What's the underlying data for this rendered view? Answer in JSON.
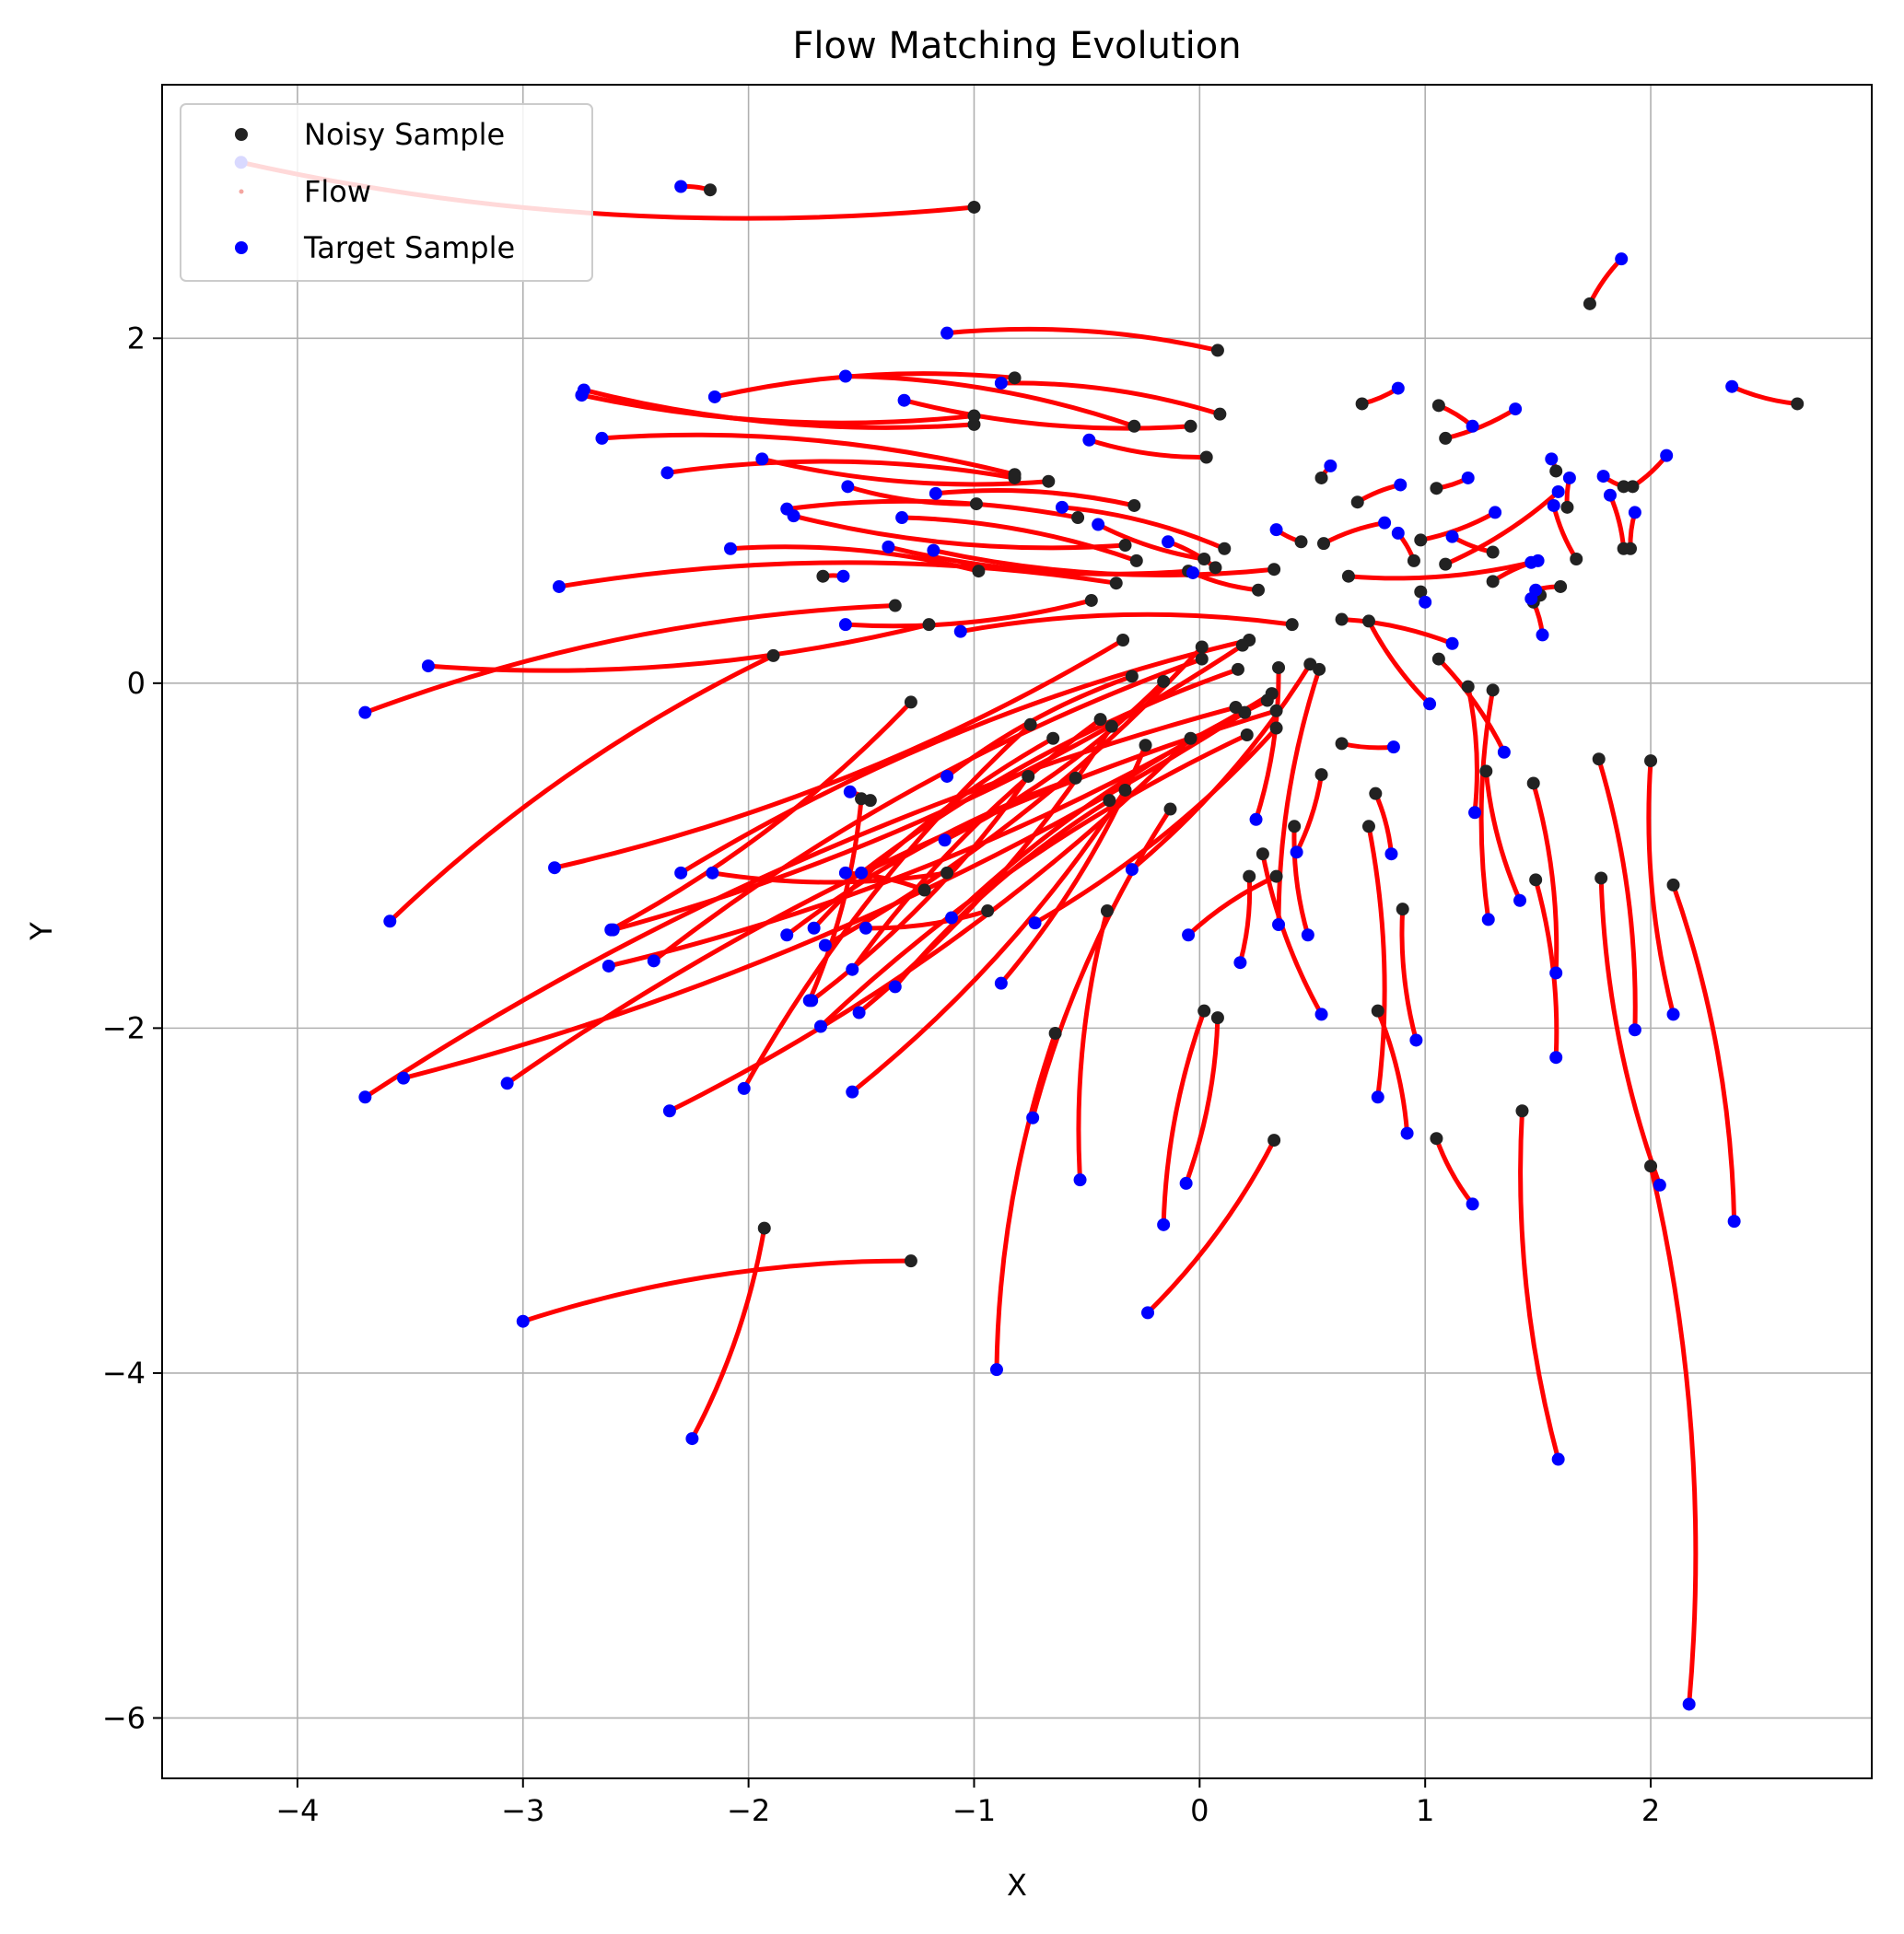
{
  "chart_data": {
    "type": "scatter",
    "title": "Flow Matching Evolution",
    "xlabel": "X",
    "ylabel": "Y",
    "xlim": [
      -4.6,
      2.98
    ],
    "ylim": [
      -6.35,
      3.47
    ],
    "xticks": [
      -4,
      -3,
      -2,
      -1,
      0,
      1,
      2
    ],
    "yticks": [
      -6,
      -4,
      -2,
      0,
      2
    ],
    "xtick_labels": [
      "−4",
      "−3",
      "−2",
      "−1",
      "0",
      "1",
      "2"
    ],
    "ytick_labels": [
      "−6",
      "−4",
      "−2",
      "0",
      "2"
    ],
    "grid": true,
    "legend_position": "top-left",
    "legend": [
      {
        "label": "Noisy Sample",
        "marker": "circle",
        "color": "#222222"
      },
      {
        "label": "Flow",
        "marker": "dot",
        "color": "#f4a6a0"
      },
      {
        "label": "Target Sample",
        "marker": "circle",
        "color": "#0000ff"
      }
    ],
    "colors": {
      "noisy": "#222222",
      "flow": "#ff0000",
      "target": "#0000ff",
      "grid": "#b0b0b0"
    },
    "flows": [
      {
        "noisy": [
          -1.0,
          2.76
        ],
        "target": [
          -4.25,
          3.02
        ]
      },
      {
        "noisy": [
          -2.17,
          2.86
        ],
        "target": [
          -2.3,
          2.88
        ]
      },
      {
        "noisy": [
          1.73,
          2.2
        ],
        "target": [
          1.87,
          2.46
        ]
      },
      {
        "noisy": [
          0.08,
          1.93
        ],
        "target": [
          -1.12,
          2.03
        ]
      },
      {
        "noisy": [
          2.65,
          1.62
        ],
        "target": [
          2.36,
          1.72
        ]
      },
      {
        "noisy": [
          -0.82,
          1.77
        ],
        "target": [
          -2.15,
          1.66
        ]
      },
      {
        "noisy": [
          -1.0,
          1.5
        ],
        "target": [
          -2.73,
          1.7
        ]
      },
      {
        "noisy": [
          0.09,
          1.56
        ],
        "target": [
          -0.88,
          1.74
        ]
      },
      {
        "noisy": [
          -1.0,
          1.55
        ],
        "target": [
          -2.74,
          1.67
        ]
      },
      {
        "noisy": [
          -0.29,
          1.49
        ],
        "target": [
          -1.57,
          1.78
        ]
      },
      {
        "noisy": [
          -0.04,
          1.49
        ],
        "target": [
          -1.31,
          1.64
        ]
      },
      {
        "noisy": [
          0.72,
          1.62
        ],
        "target": [
          0.88,
          1.71
        ]
      },
      {
        "noisy": [
          1.06,
          1.61
        ],
        "target": [
          1.21,
          1.49
        ]
      },
      {
        "noisy": [
          1.09,
          1.42
        ],
        "target": [
          1.4,
          1.59
        ]
      },
      {
        "noisy": [
          0.03,
          1.31
        ],
        "target": [
          -0.49,
          1.41
        ]
      },
      {
        "noisy": [
          -0.82,
          1.21
        ],
        "target": [
          -2.65,
          1.42
        ]
      },
      {
        "noisy": [
          -0.67,
          1.17
        ],
        "target": [
          -1.94,
          1.3
        ]
      },
      {
        "noisy": [
          -0.82,
          1.19
        ],
        "target": [
          -2.36,
          1.22
        ]
      },
      {
        "noisy": [
          0.54,
          1.19
        ],
        "target": [
          0.58,
          1.26
        ]
      },
      {
        "noisy": [
          1.05,
          1.13
        ],
        "target": [
          1.19,
          1.19
        ]
      },
      {
        "noisy": [
          -0.99,
          1.04
        ],
        "target": [
          -1.56,
          1.14
        ]
      },
      {
        "noisy": [
          -0.29,
          1.03
        ],
        "target": [
          -1.17,
          1.1
        ]
      },
      {
        "noisy": [
          0.7,
          1.05
        ],
        "target": [
          0.89,
          1.15
        ]
      },
      {
        "noisy": [
          1.58,
          1.23
        ],
        "target": [
          1.56,
          1.3
        ]
      },
      {
        "noisy": [
          1.63,
          1.02
        ],
        "target": [
          1.64,
          1.19
        ]
      },
      {
        "noisy": [
          1.92,
          1.14
        ],
        "target": [
          2.07,
          1.32
        ]
      },
      {
        "noisy": [
          1.88,
          1.14
        ],
        "target": [
          1.79,
          1.2
        ]
      },
      {
        "noisy": [
          -0.54,
          0.96
        ],
        "target": [
          -1.83,
          1.01
        ]
      },
      {
        "noisy": [
          0.55,
          0.81
        ],
        "target": [
          0.82,
          0.93
        ]
      },
      {
        "noisy": [
          0.98,
          0.83
        ],
        "target": [
          1.31,
          0.99
        ]
      },
      {
        "noisy": [
          -0.33,
          0.8
        ],
        "target": [
          -1.8,
          0.97
        ]
      },
      {
        "noisy": [
          0.11,
          0.78
        ],
        "target": [
          -0.61,
          1.02
        ]
      },
      {
        "noisy": [
          0.45,
          0.82
        ],
        "target": [
          0.34,
          0.89
        ]
      },
      {
        "noisy": [
          0.95,
          0.71
        ],
        "target": [
          0.88,
          0.87
        ]
      },
      {
        "noisy": [
          1.3,
          0.76
        ],
        "target": [
          1.12,
          0.85
        ]
      },
      {
        "noisy": [
          1.88,
          0.78
        ],
        "target": [
          1.82,
          1.09
        ]
      },
      {
        "noisy": [
          1.91,
          0.78
        ],
        "target": [
          1.93,
          0.99
        ]
      },
      {
        "noisy": [
          -0.28,
          0.71
        ],
        "target": [
          -1.32,
          0.96
        ]
      },
      {
        "noisy": [
          0.02,
          0.72
        ],
        "target": [
          -0.45,
          0.92
        ]
      },
      {
        "noisy": [
          1.09,
          0.69
        ],
        "target": [
          1.59,
          1.11
        ]
      },
      {
        "noisy": [
          1.67,
          0.72
        ],
        "target": [
          1.57,
          1.03
        ]
      },
      {
        "noisy": [
          -0.98,
          0.65
        ],
        "target": [
          -2.08,
          0.78
        ]
      },
      {
        "noisy": [
          -0.05,
          0.65
        ],
        "target": [
          -1.38,
          0.79
        ]
      },
      {
        "noisy": [
          0.07,
          0.67
        ],
        "target": [
          -0.14,
          0.82
        ]
      },
      {
        "noisy": [
          0.33,
          0.66
        ],
        "target": [
          -1.18,
          0.77
        ]
      },
      {
        "noisy": [
          0.66,
          0.62
        ],
        "target": [
          1.47,
          0.7
        ]
      },
      {
        "noisy": [
          -1.67,
          0.62
        ],
        "target": [
          -1.58,
          0.62
        ]
      },
      {
        "noisy": [
          -0.37,
          0.58
        ],
        "target": [
          -2.84,
          0.56
        ]
      },
      {
        "noisy": [
          1.3,
          0.59
        ],
        "target": [
          1.5,
          0.71
        ]
      },
      {
        "noisy": [
          1.6,
          0.56
        ],
        "target": [
          1.49,
          0.54
        ]
      },
      {
        "noisy": [
          0.26,
          0.54
        ],
        "target": [
          -0.03,
          0.64
        ]
      },
      {
        "noisy": [
          0.98,
          0.53
        ],
        "target": [
          1.0,
          0.47
        ]
      },
      {
        "noisy": [
          1.48,
          0.47
        ],
        "target": [
          1.52,
          0.28
        ]
      },
      {
        "noisy": [
          1.51,
          0.51
        ],
        "target": [
          1.47,
          0.49
        ]
      },
      {
        "noisy": [
          -0.48,
          0.48
        ],
        "target": [
          -1.57,
          0.34
        ]
      },
      {
        "noisy": [
          -1.35,
          0.45
        ],
        "target": [
          -3.7,
          -0.17
        ]
      },
      {
        "noisy": [
          0.63,
          0.37
        ],
        "target": [
          1.12,
          0.23
        ]
      },
      {
        "noisy": [
          0.75,
          0.36
        ],
        "target": [
          1.02,
          -0.12
        ]
      },
      {
        "noisy": [
          -1.2,
          0.34
        ],
        "target": [
          -3.42,
          0.1
        ]
      },
      {
        "noisy": [
          0.41,
          0.34
        ],
        "target": [
          -1.06,
          0.3
        ]
      },
      {
        "noisy": [
          -0.34,
          0.25
        ],
        "target": [
          -2.86,
          -1.07
        ]
      },
      {
        "noisy": [
          0.22,
          0.25
        ],
        "target": [
          -2.3,
          -1.1
        ]
      },
      {
        "noisy": [
          0.01,
          0.21
        ],
        "target": [
          -1.66,
          -1.52
        ]
      },
      {
        "noisy": [
          -1.89,
          0.16
        ],
        "target": [
          -3.59,
          -1.38
        ]
      },
      {
        "noisy": [
          0.19,
          0.22
        ],
        "target": [
          -2.6,
          -1.43
        ]
      },
      {
        "noisy": [
          0.01,
          0.14
        ],
        "target": [
          -2.42,
          -1.61
        ]
      },
      {
        "noisy": [
          0.49,
          0.11
        ],
        "target": [
          -0.3,
          -1.08
        ]
      },
      {
        "noisy": [
          0.53,
          0.08
        ],
        "target": [
          0.35,
          -1.4
        ]
      },
      {
        "noisy": [
          0.35,
          0.09
        ],
        "target": [
          0.25,
          -0.79
        ]
      },
      {
        "noisy": [
          -0.3,
          0.04
        ],
        "target": [
          -1.12,
          -0.54
        ]
      },
      {
        "noisy": [
          -0.16,
          0.01
        ],
        "target": [
          -1.13,
          -0.91
        ]
      },
      {
        "noisy": [
          0.17,
          0.08
        ],
        "target": [
          -1.5,
          -1.1
        ]
      },
      {
        "noisy": [
          1.06,
          0.14
        ],
        "target": [
          1.35,
          -0.4
        ]
      },
      {
        "noisy": [
          0.3,
          -0.1
        ],
        "target": [
          -1.1,
          -1.36
        ]
      },
      {
        "noisy": [
          0.32,
          -0.06
        ],
        "target": [
          -2.62,
          -1.64
        ]
      },
      {
        "noisy": [
          0.16,
          -0.14
        ],
        "target": [
          -3.7,
          -2.4
        ]
      },
      {
        "noisy": [
          0.2,
          -0.17
        ],
        "target": [
          -3.53,
          -2.29
        ]
      },
      {
        "noisy": [
          0.34,
          -0.16
        ],
        "target": [
          -3.07,
          -2.32
        ]
      },
      {
        "noisy": [
          0.34,
          -0.26
        ],
        "target": [
          -0.73,
          -1.39
        ]
      },
      {
        "noisy": [
          0.21,
          -0.3
        ],
        "target": [
          -1.68,
          -1.99
        ]
      },
      {
        "noisy": [
          1.19,
          -0.02
        ],
        "target": [
          1.22,
          -0.75
        ]
      },
      {
        "noisy": [
          1.3,
          -0.04
        ],
        "target": [
          1.28,
          -1.37
        ]
      },
      {
        "noisy": [
          -1.28,
          -0.11
        ],
        "target": [
          -2.61,
          -1.43
        ]
      },
      {
        "noisy": [
          -0.44,
          -0.21
        ],
        "target": [
          -1.54,
          -1.66
        ]
      },
      {
        "noisy": [
          -0.39,
          -0.25
        ],
        "target": [
          -1.51,
          -1.91
        ]
      },
      {
        "noisy": [
          -0.75,
          -0.24
        ],
        "target": [
          -2.02,
          -2.35
        ]
      },
      {
        "noisy": [
          -0.04,
          -0.32
        ],
        "target": [
          -2.35,
          -2.48
        ]
      },
      {
        "noisy": [
          -0.65,
          -0.32
        ],
        "target": [
          -1.71,
          -1.42
        ]
      },
      {
        "noisy": [
          -0.24,
          -0.36
        ],
        "target": [
          -0.88,
          -1.74
        ]
      },
      {
        "noisy": [
          0.63,
          -0.35
        ],
        "target": [
          0.86,
          -0.37
        ]
      },
      {
        "noisy": [
          -0.76,
          -0.54
        ],
        "target": [
          -1.72,
          -1.84
        ]
      },
      {
        "noisy": [
          -0.55,
          -0.55
        ],
        "target": [
          -1.83,
          -1.46
        ]
      },
      {
        "noisy": [
          0.54,
          -0.53
        ],
        "target": [
          0.43,
          -0.98
        ]
      },
      {
        "noisy": [
          -0.4,
          -0.68
        ],
        "target": [
          -1.35,
          -1.76
        ]
      },
      {
        "noisy": [
          -0.33,
          -0.62
        ],
        "target": [
          -1.54,
          -2.37
        ]
      },
      {
        "noisy": [
          1.27,
          -0.51
        ],
        "target": [
          1.42,
          -1.26
        ]
      },
      {
        "noisy": [
          1.77,
          -0.44
        ],
        "target": [
          1.93,
          -2.01
        ]
      },
      {
        "noisy": [
          2.0,
          -0.45
        ],
        "target": [
          2.1,
          -1.92
        ]
      },
      {
        "noisy": [
          1.48,
          -0.58
        ],
        "target": [
          1.58,
          -1.68
        ]
      },
      {
        "noisy": [
          -1.46,
          -0.68
        ],
        "target": [
          -1.55,
          -0.63
        ]
      },
      {
        "noisy": [
          -1.5,
          -0.67
        ],
        "target": [
          -1.73,
          -1.84
        ]
      },
      {
        "noisy": [
          -0.13,
          -0.73
        ],
        "target": [
          -0.74,
          -2.52
        ]
      },
      {
        "noisy": [
          0.78,
          -0.64
        ],
        "target": [
          0.85,
          -0.99
        ]
      },
      {
        "noisy": [
          0.42,
          -0.83
        ],
        "target": [
          0.48,
          -1.46
        ]
      },
      {
        "noisy": [
          0.75,
          -0.83
        ],
        "target": [
          0.79,
          -2.4
        ]
      },
      {
        "noisy": [
          0.28,
          -0.99
        ],
        "target": [
          0.54,
          -1.92
        ]
      },
      {
        "noisy": [
          0.22,
          -1.12
        ],
        "target": [
          0.18,
          -1.62
        ]
      },
      {
        "noisy": [
          0.34,
          -1.12
        ],
        "target": [
          -0.05,
          -1.46
        ]
      },
      {
        "noisy": [
          -1.12,
          -1.1
        ],
        "target": [
          -2.16,
          -1.1
        ]
      },
      {
        "noisy": [
          -1.22,
          -1.2
        ],
        "target": [
          -1.57,
          -1.1
        ]
      },
      {
        "noisy": [
          -0.94,
          -1.32
        ],
        "target": [
          -1.48,
          -1.42
        ]
      },
      {
        "noisy": [
          -0.41,
          -1.32
        ],
        "target": [
          -0.53,
          -2.88
        ]
      },
      {
        "noisy": [
          1.49,
          -1.14
        ],
        "target": [
          1.58,
          -2.17
        ]
      },
      {
        "noisy": [
          1.78,
          -1.13
        ],
        "target": [
          2.04,
          -2.91
        ]
      },
      {
        "noisy": [
          2.1,
          -1.17
        ],
        "target": [
          2.37,
          -3.12
        ]
      },
      {
        "noisy": [
          0.9,
          -1.31
        ],
        "target": [
          0.96,
          -2.07
        ]
      },
      {
        "noisy": [
          0.79,
          -1.9
        ],
        "target": [
          0.92,
          -2.61
        ]
      },
      {
        "noisy": [
          0.02,
          -1.9
        ],
        "target": [
          -0.16,
          -3.14
        ]
      },
      {
        "noisy": [
          0.08,
          -1.94
        ],
        "target": [
          -0.06,
          -2.9
        ]
      },
      {
        "noisy": [
          -0.64,
          -2.03
        ],
        "target": [
          -0.9,
          -3.98
        ]
      },
      {
        "noisy": [
          0.33,
          -2.65
        ],
        "target": [
          -0.23,
          -3.65
        ]
      },
      {
        "noisy": [
          1.43,
          -2.48
        ],
        "target": [
          1.59,
          -4.5
        ]
      },
      {
        "noisy": [
          2.0,
          -2.8
        ],
        "target": [
          2.17,
          -5.92
        ]
      },
      {
        "noisy": [
          -1.28,
          -3.35
        ],
        "target": [
          -3.0,
          -3.7
        ]
      },
      {
        "noisy": [
          -1.93,
          -3.16
        ],
        "target": [
          -2.25,
          -4.38
        ]
      },
      {
        "noisy": [
          1.05,
          -2.64
        ],
        "target": [
          1.21,
          -3.02
        ]
      }
    ]
  }
}
